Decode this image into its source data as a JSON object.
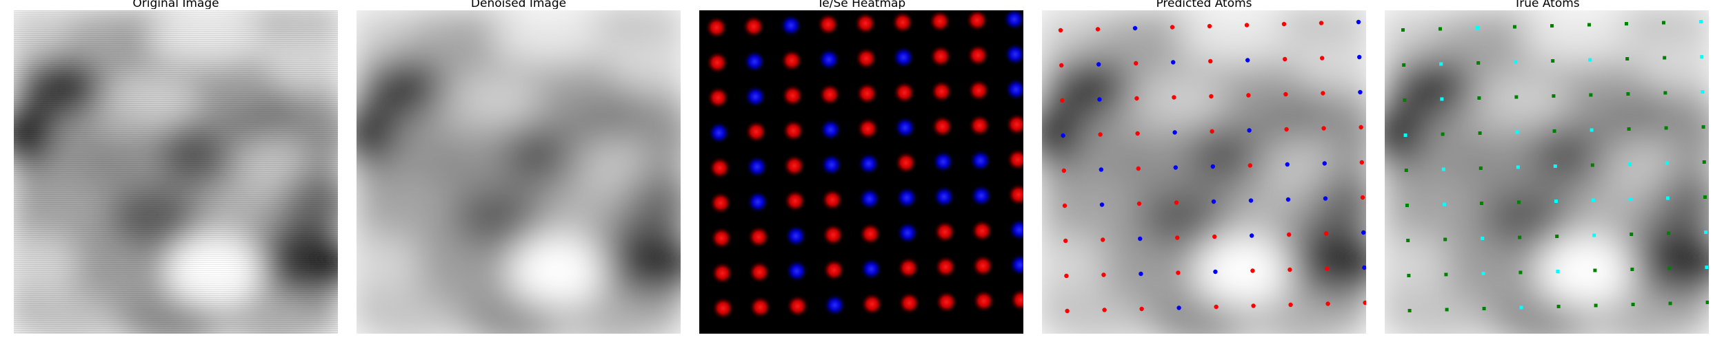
{
  "figure": {
    "panels": [
      {
        "title": "Original Image"
      },
      {
        "title": "Denoised Image"
      },
      {
        "title": "Te/Se Heatmap"
      },
      {
        "title": "Predicted Atoms"
      },
      {
        "title": "True Atoms"
      }
    ]
  },
  "colors": {
    "te": "#ff0000",
    "se": "#0000ff",
    "true_te": "#008000",
    "true_se": "#00ffff",
    "heat_background": "#000000"
  },
  "lattice": {
    "rows": 9,
    "cols": 9,
    "species": [
      "TTSTTTTTS",
      "TSTSTSTTS",
      "TSTTTTTTS",
      "STTSTSTTT",
      "TSTSSTSST",
      "TSTTSSSST",
      "TTSTTSTTS",
      "TTSTSTTTS",
      "TTTSTTTTT"
    ]
  }
}
